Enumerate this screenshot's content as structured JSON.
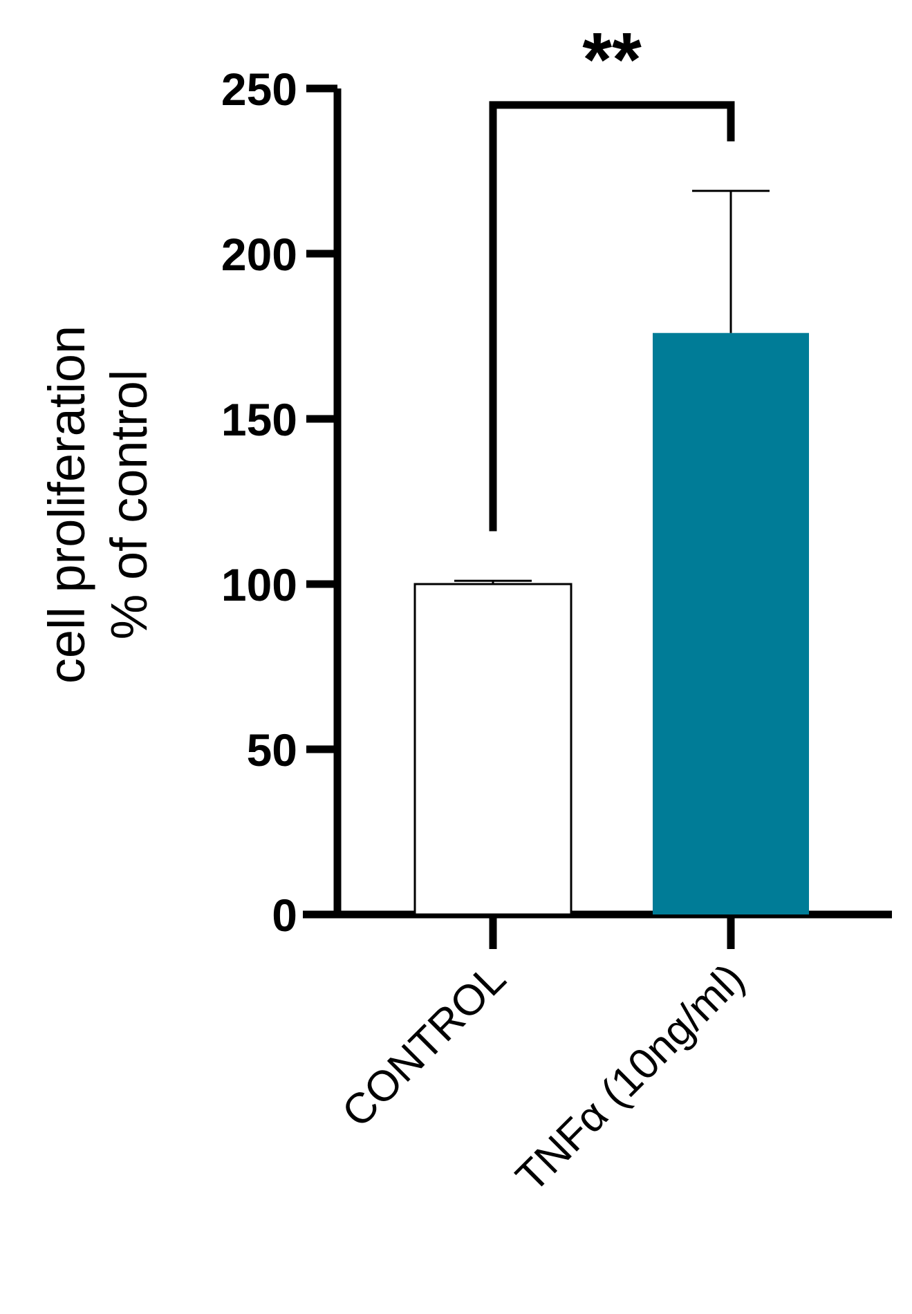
{
  "chart_data": {
    "type": "bar",
    "categories": [
      "CONTROL",
      "TNFα (10ng/ml)"
    ],
    "values": [
      100,
      176
    ],
    "error": [
      1,
      43
    ],
    "colors": [
      "#ffffff",
      "#007c97"
    ],
    "bar_edge_colors": [
      "#000000",
      "#007c97"
    ],
    "ylabel_lines": [
      "cell proliferation",
      "% of control"
    ],
    "ylim": [
      0,
      250
    ],
    "yticks": [
      0,
      50,
      100,
      150,
      200,
      250
    ],
    "ytick_labels": [
      "0",
      "50",
      "100",
      "150",
      "200",
      "250"
    ],
    "grid": false,
    "significance": {
      "from": 0,
      "to": 1,
      "label": "**",
      "level": 245
    }
  }
}
